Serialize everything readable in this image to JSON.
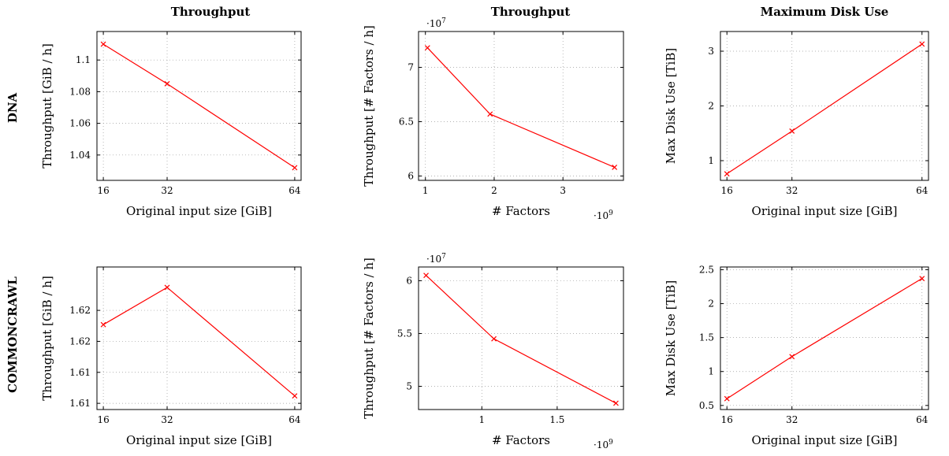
{
  "figure": {
    "column_titles": [
      "Throughput",
      "Throughput",
      "Maximum Disk Use"
    ],
    "row_labels": [
      "DNA",
      "COMMONCRAWL"
    ]
  },
  "chart_data": [
    {
      "type": "line",
      "title": "Throughput",
      "xlabel": "Original input size [GiB]",
      "ylabel": "Throughput [GiB / h]",
      "x": [
        16,
        32,
        64
      ],
      "xticks": [
        16,
        32,
        64
      ],
      "xtick_labels": [
        "16",
        "32",
        "64"
      ],
      "xlim": [
        14.4,
        65.6
      ],
      "ylim": [
        1.024,
        1.118
      ],
      "yticks": [
        1.04,
        1.06,
        1.08,
        1.1
      ],
      "ytick_labels": [
        "1.04",
        "1.06",
        "1.08",
        "1.1"
      ],
      "grid": true,
      "series": [
        {
          "values": [
            1.11,
            1.085,
            1.032
          ],
          "color": "#ff0000",
          "marker": "x"
        }
      ]
    },
    {
      "type": "line",
      "xlabel": "# Factors",
      "ylabel": "Throughput [# Factors / h]",
      "x_exponent": "9",
      "y_exponent": "7",
      "x": [
        1.03,
        1.94,
        3.75
      ],
      "xticks": [
        1,
        2,
        3
      ],
      "xtick_labels": [
        "1",
        "2",
        "3"
      ],
      "xlim": [
        0.9,
        3.88
      ],
      "ylim": [
        5.96,
        7.33
      ],
      "yticks": [
        6,
        6.5,
        7
      ],
      "ytick_labels": [
        "6",
        "6.5",
        "7"
      ],
      "grid": true,
      "series": [
        {
          "values": [
            7.18,
            6.57,
            6.08
          ],
          "color": "#ff0000",
          "marker": "x"
        }
      ]
    },
    {
      "type": "line",
      "title": "Maximum Disk Use",
      "xlabel": "Original input size [GiB]",
      "ylabel": "Max Disk Use [TiB]",
      "x": [
        16,
        32,
        64
      ],
      "xticks": [
        16,
        32,
        64
      ],
      "xtick_labels": [
        "16",
        "32",
        "64"
      ],
      "xlim": [
        14.4,
        65.6
      ],
      "ylim": [
        0.64,
        3.36
      ],
      "yticks": [
        1,
        2,
        3
      ],
      "ytick_labels": [
        "1",
        "2",
        "3"
      ],
      "grid": true,
      "series": [
        {
          "values": [
            0.76,
            1.54,
            3.13
          ],
          "color": "#ff0000",
          "marker": "x"
        }
      ]
    },
    {
      "type": "line",
      "xlabel": "Original input size [GiB]",
      "ylabel": "Throughput [GiB / h]",
      "x": [
        16,
        32,
        64
      ],
      "xticks": [
        16,
        32,
        64
      ],
      "xtick_labels": [
        "16",
        "32",
        "64"
      ],
      "xlim": [
        14.4,
        65.6
      ],
      "ylim": [
        1.6065,
        1.6295
      ],
      "yticks": [
        1.6075,
        1.6125,
        1.6175,
        1.6225
      ],
      "ytick_labels": [
        "1.61",
        "1.61",
        "1.62",
        "1.62"
      ],
      "grid": true,
      "series": [
        {
          "values": [
            1.6202,
            1.6262,
            1.6087
          ],
          "color": "#ff0000",
          "marker": "x"
        }
      ]
    },
    {
      "type": "line",
      "xlabel": "# Factors",
      "ylabel": "Throughput [# Factors / h]",
      "x_exponent": "9",
      "y_exponent": "7",
      "x": [
        0.63,
        1.08,
        1.89
      ],
      "xticks": [
        1,
        1.5
      ],
      "xtick_labels": [
        "1",
        "1.5"
      ],
      "xlim": [
        0.58,
        1.94
      ],
      "ylim": [
        4.78,
        6.13
      ],
      "yticks": [
        5,
        5.5,
        6
      ],
      "ytick_labels": [
        "5",
        "5.5",
        "6"
      ],
      "grid": true,
      "series": [
        {
          "values": [
            6.05,
            5.45,
            4.84
          ],
          "color": "#ff0000",
          "marker": "x"
        }
      ]
    },
    {
      "type": "line",
      "xlabel": "Original input size [GiB]",
      "ylabel": "Max Disk Use [TiB]",
      "x": [
        16,
        32,
        64
      ],
      "xticks": [
        16,
        32,
        64
      ],
      "xtick_labels": [
        "16",
        "32",
        "64"
      ],
      "xlim": [
        14.4,
        65.6
      ],
      "ylim": [
        0.44,
        2.54
      ],
      "yticks": [
        0.5,
        1,
        1.5,
        2,
        2.5
      ],
      "ytick_labels": [
        "0.5",
        "1",
        "1.5",
        "2",
        "2.5"
      ],
      "grid": true,
      "series": [
        {
          "values": [
            0.6,
            1.22,
            2.37
          ],
          "color": "#ff0000",
          "marker": "x"
        }
      ]
    }
  ]
}
